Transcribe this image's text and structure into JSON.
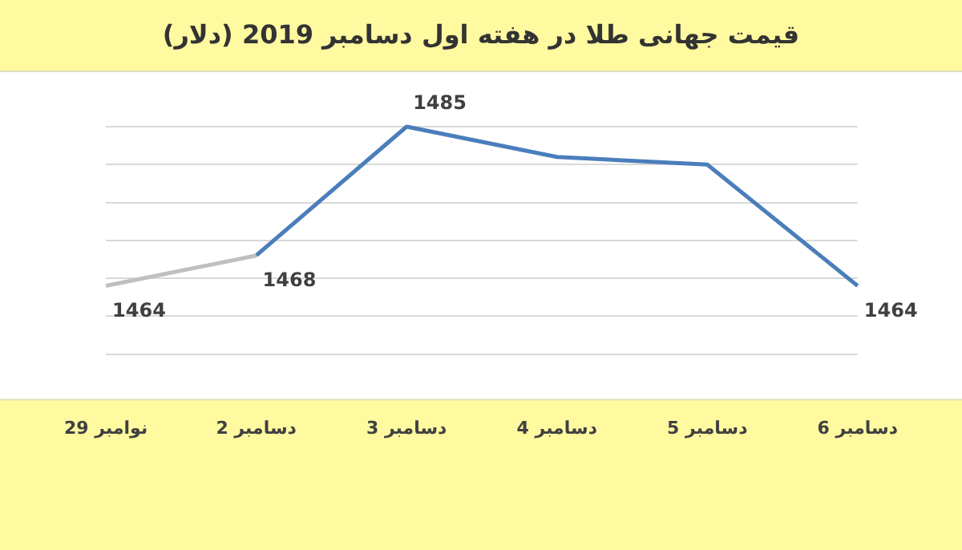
{
  "chart_data": {
    "type": "line",
    "title": "قیمت جهانی طلا در هفته اول دسامبر 2019 (دلار)",
    "categories": [
      "29 نوامبر",
      "2 دسامبر",
      "3 دسامبر",
      "4 دسامبر",
      "5 دسامبر",
      "6 دسامبر"
    ],
    "series": [
      {
        "color": "#bfbfbf",
        "values": [
          1464,
          1468,
          null,
          null,
          null,
          null
        ],
        "value_labels": [
          "1464",
          null,
          null,
          null,
          null,
          null
        ]
      },
      {
        "color": "#4a7ebb",
        "values": [
          null,
          1468,
          1485,
          1481,
          1480,
          1464
        ],
        "value_labels": [
          null,
          "1468",
          "1485",
          null,
          null,
          "1464"
        ]
      }
    ],
    "yticks": [
      {
        "value": 1455,
        "label": null
      },
      {
        "value": 1460,
        "label": null
      },
      {
        "value": 1465,
        "label": null
      },
      {
        "value": 1470,
        "label": null
      },
      {
        "value": 1475,
        "label": null
      },
      {
        "value": 1480,
        "label": null
      },
      {
        "value": 1485,
        "label": null
      }
    ],
    "tick_labels": "x",
    "grid": "y",
    "legend": false,
    "marker": "none",
    "line_style": "solid"
  }
}
